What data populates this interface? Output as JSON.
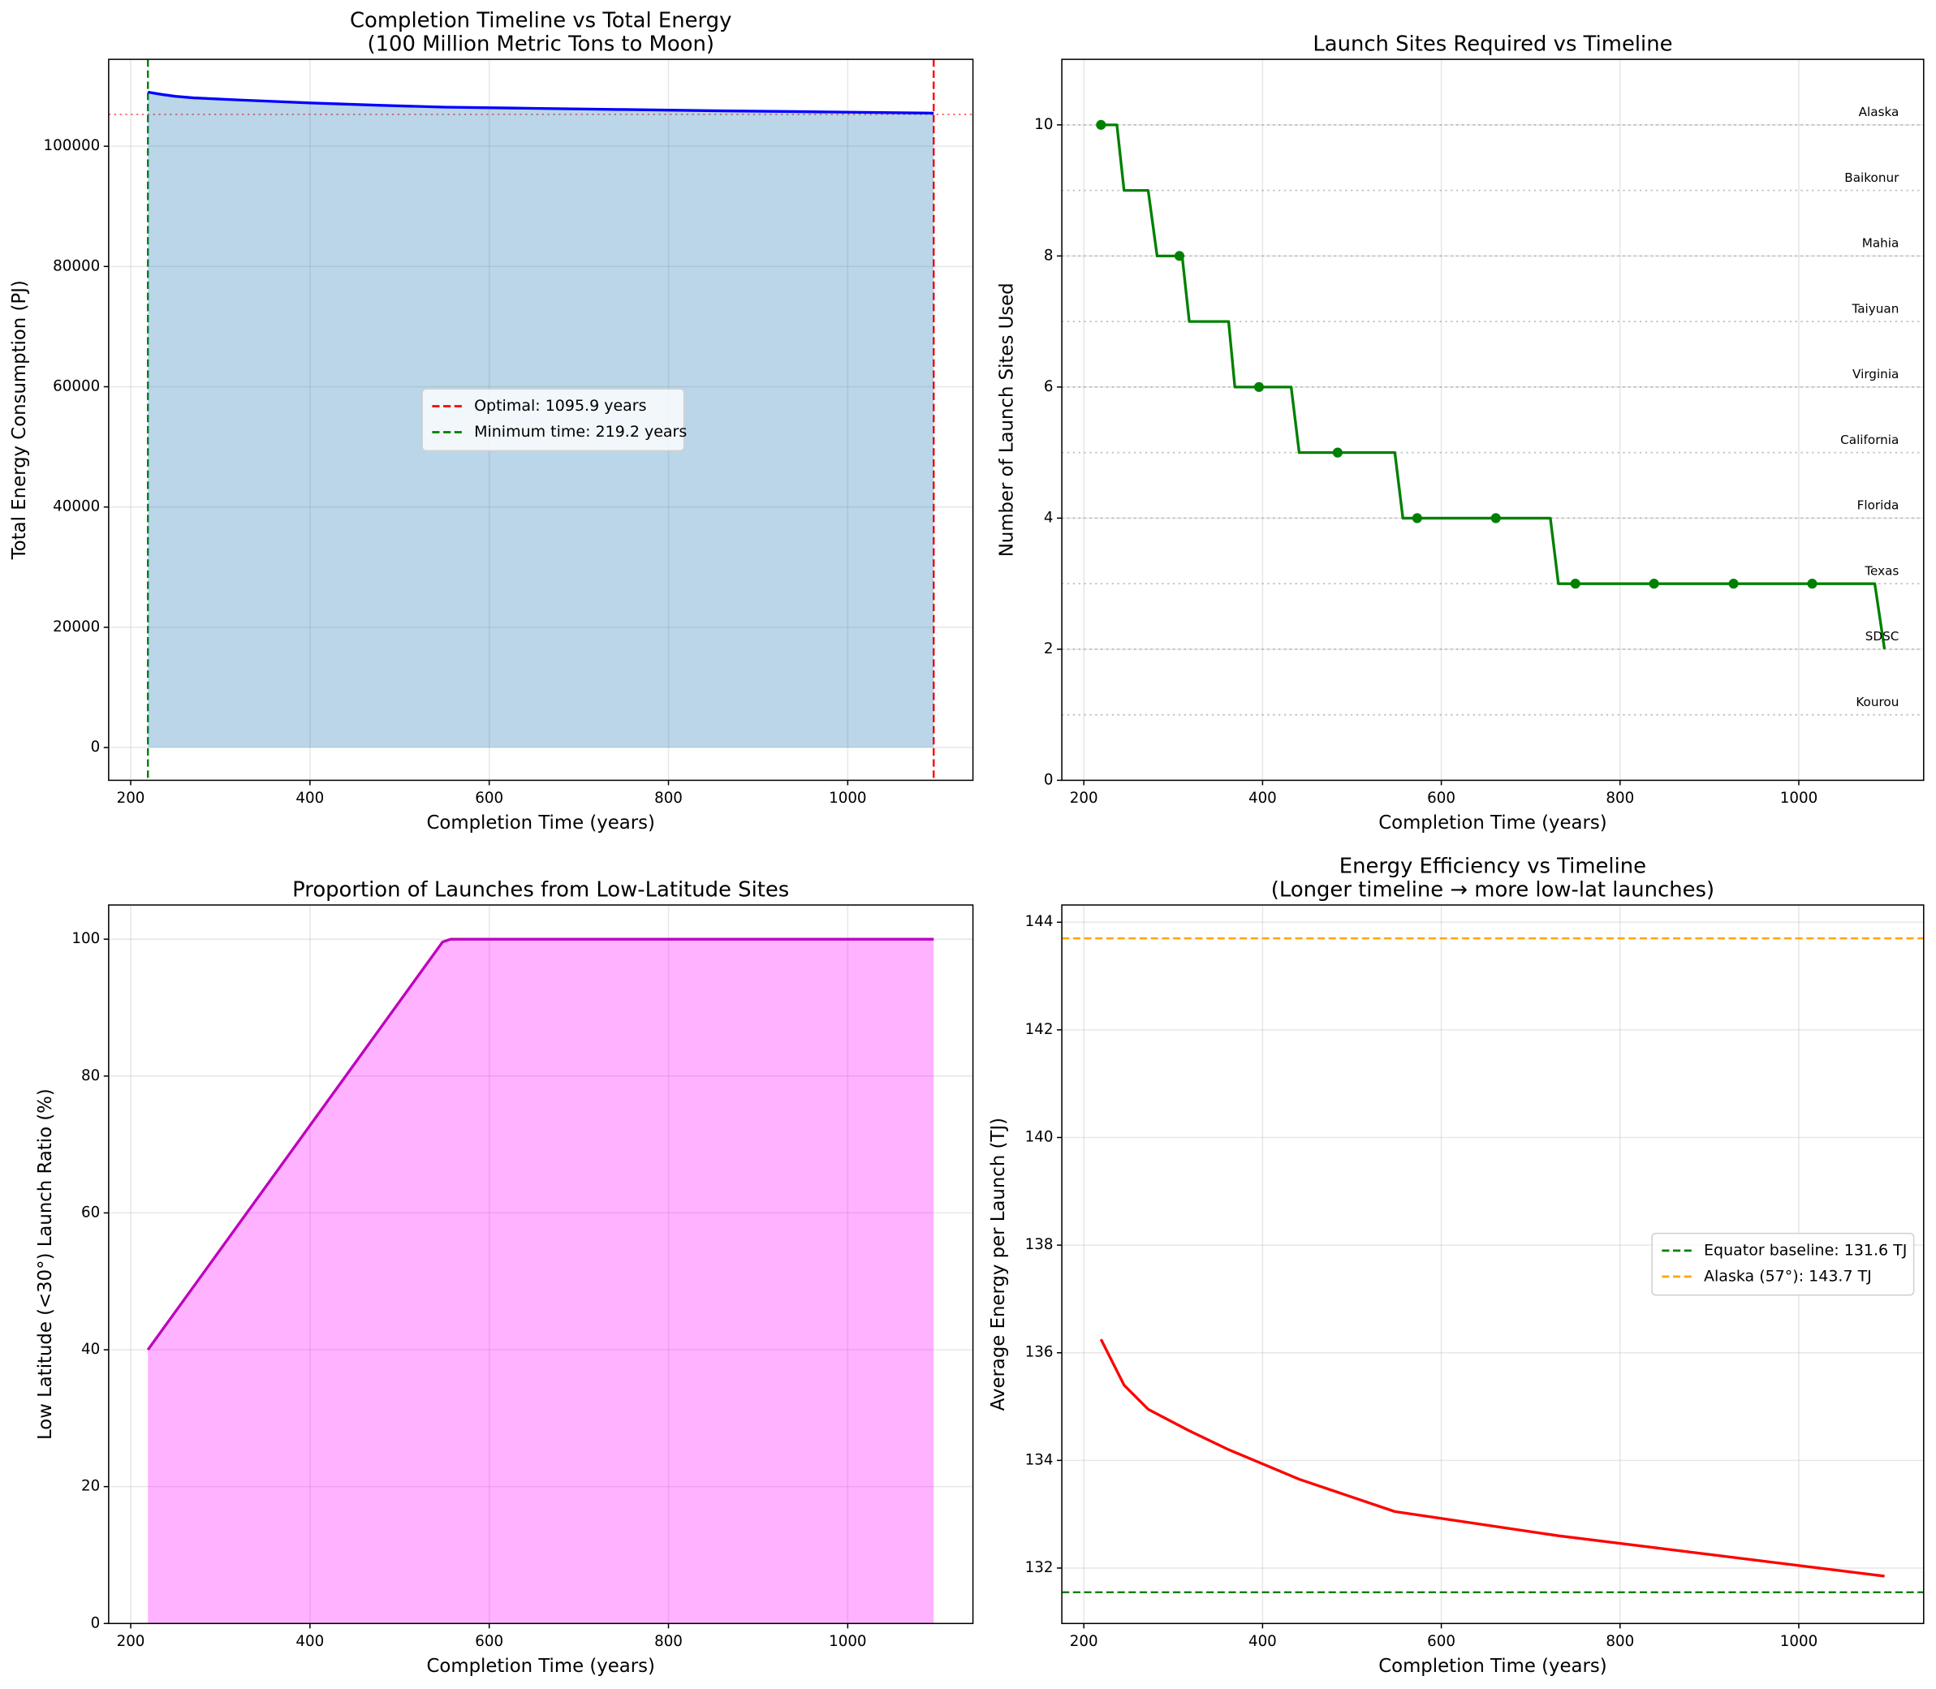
{
  "chart_data": [
    {
      "type": "line",
      "title": [
        "Completion Timeline vs Total Energy",
        "(100 Million Metric Tons to Moon)"
      ],
      "xlabel": "Completion Time (years)",
      "ylabel": "Total Energy Consumption (PJ)",
      "xlim": [
        175.4,
        1139.7
      ],
      "ylim": [
        -5450,
        114450
      ],
      "xticks": [
        200,
        400,
        600,
        800,
        1000
      ],
      "yticks": [
        0,
        20000,
        40000,
        60000,
        80000,
        100000
      ],
      "grid": true,
      "legend": "center",
      "series": [
        {
          "color": "#0000ff",
          "fill_color": "#1f77b4",
          "fill_opacity": 0.3,
          "x": [
            219.2,
            235,
            250,
            270,
            320,
            400,
            480,
            550,
            650,
            750,
            850,
            950,
            1095.9
          ],
          "values": [
            109000,
            108600,
            108300,
            108050,
            107700,
            107200,
            106800,
            106500,
            106300,
            106100,
            105900,
            105750,
            105500
          ]
        }
      ],
      "reference_lines": [
        {
          "orientation": "horizontal",
          "value": 105300,
          "color": "#ff0000",
          "style": "dotted",
          "opacity": 0.6
        },
        {
          "orientation": "vertical",
          "value": 1095.9,
          "color": "#ff0000",
          "style": "dashed",
          "name": "Optimal: 1095.9 years"
        },
        {
          "orientation": "vertical",
          "value": 219.2,
          "color": "#008000",
          "style": "dashed",
          "name": "Minimum time: 219.2 years"
        }
      ]
    },
    {
      "type": "line",
      "title": [
        "Launch Sites Required vs Timeline"
      ],
      "xlabel": "Completion Time (years)",
      "ylabel": "Number of Launch Sites Used",
      "xlim": [
        175.4,
        1139.7
      ],
      "ylim": [
        0,
        11
      ],
      "xticks": [
        200,
        400,
        600,
        800,
        1000
      ],
      "yticks": [
        0,
        2,
        4,
        6,
        8,
        10
      ],
      "grid": true,
      "series": [
        {
          "color": "#008000",
          "x": [
            219.2,
            237,
            245,
            272,
            282,
            310,
            318,
            362,
            369,
            432,
            441,
            548,
            557,
            722,
            731,
            1085,
            1095.9
          ],
          "values": [
            10,
            10,
            9,
            9,
            8,
            8,
            7,
            7,
            6,
            6,
            5,
            5,
            4,
            4,
            3,
            3,
            2
          ]
        },
        {
          "color": "#008000",
          "marker_only": true,
          "x": [
            219.2,
            307,
            396,
            484,
            573,
            661,
            750,
            838,
            927,
            1015
          ],
          "values": [
            10,
            8,
            6,
            5,
            4,
            4,
            3,
            3,
            3,
            3
          ]
        }
      ],
      "reference_lines": [
        {
          "orientation": "horizontal",
          "value": 10,
          "label": "Alaska",
          "color": "#808080",
          "style": "dotted",
          "opacity": 0.5
        },
        {
          "orientation": "horizontal",
          "value": 9,
          "label": "Baikonur",
          "color": "#808080",
          "style": "dotted",
          "opacity": 0.5
        },
        {
          "orientation": "horizontal",
          "value": 8,
          "label": "Mahia",
          "color": "#808080",
          "style": "dotted",
          "opacity": 0.5
        },
        {
          "orientation": "horizontal",
          "value": 7,
          "label": "Taiyuan",
          "color": "#808080",
          "style": "dotted",
          "opacity": 0.5
        },
        {
          "orientation": "horizontal",
          "value": 6,
          "label": "Virginia",
          "color": "#808080",
          "style": "dotted",
          "opacity": 0.5
        },
        {
          "orientation": "horizontal",
          "value": 5,
          "label": "California",
          "color": "#808080",
          "style": "dotted",
          "opacity": 0.5
        },
        {
          "orientation": "horizontal",
          "value": 4,
          "label": "Florida",
          "color": "#808080",
          "style": "dotted",
          "opacity": 0.5
        },
        {
          "orientation": "horizontal",
          "value": 3,
          "label": "Texas",
          "color": "#808080",
          "style": "dotted",
          "opacity": 0.5
        },
        {
          "orientation": "horizontal",
          "value": 2,
          "label": "SDSC",
          "color": "#808080",
          "style": "dotted",
          "opacity": 0.5
        },
        {
          "orientation": "horizontal",
          "value": 1,
          "label": "Kourou",
          "color": "#808080",
          "style": "dotted",
          "opacity": 0.5
        }
      ]
    },
    {
      "type": "line",
      "title": [
        "Proportion of Launches from Low-Latitude Sites"
      ],
      "xlabel": "Completion Time (years)",
      "ylabel": "Low Latitude (<30°) Launch Ratio (%)",
      "xlim": [
        175.4,
        1139.7
      ],
      "ylim": [
        0,
        105
      ],
      "xticks": [
        200,
        400,
        600,
        800,
        1000
      ],
      "yticks": [
        0,
        20,
        40,
        60,
        80,
        100
      ],
      "grid": true,
      "series": [
        {
          "color": "#bf00bf",
          "fill_color": "#ff00ff",
          "fill_opacity": 0.3,
          "x": [
            219.2,
            548,
            557,
            1095.9
          ],
          "values": [
            40,
            99.6,
            100,
            100
          ]
        }
      ]
    },
    {
      "type": "line",
      "title": [
        "Energy Efficiency vs Timeline",
        "(Longer timeline → more low-lat launches)"
      ],
      "xlabel": "Completion Time (years)",
      "ylabel": "Average Energy per Launch (TJ)",
      "xlim": [
        175.4,
        1139.7
      ],
      "ylim": [
        130.97,
        144.32
      ],
      "xticks": [
        200,
        400,
        600,
        800,
        1000
      ],
      "yticks": [
        132,
        134,
        136,
        138,
        140,
        142,
        144
      ],
      "grid": true,
      "legend": "center right",
      "series": [
        {
          "color": "#ff0000",
          "x": [
            219.2,
            245,
            272,
            318,
            362,
            441,
            548,
            731,
            1095.9
          ],
          "values": [
            136.25,
            135.4,
            134.95,
            134.55,
            134.2,
            133.65,
            133.05,
            132.6,
            131.85
          ]
        }
      ],
      "reference_lines": [
        {
          "orientation": "horizontal",
          "value": 131.55,
          "color": "#008000",
          "style": "dashed",
          "name": "Equator baseline: 131.6 TJ"
        },
        {
          "orientation": "horizontal",
          "value": 143.7,
          "color": "#ffa500",
          "style": "dashed",
          "name": "Alaska (57°): 143.7 TJ"
        }
      ]
    }
  ]
}
